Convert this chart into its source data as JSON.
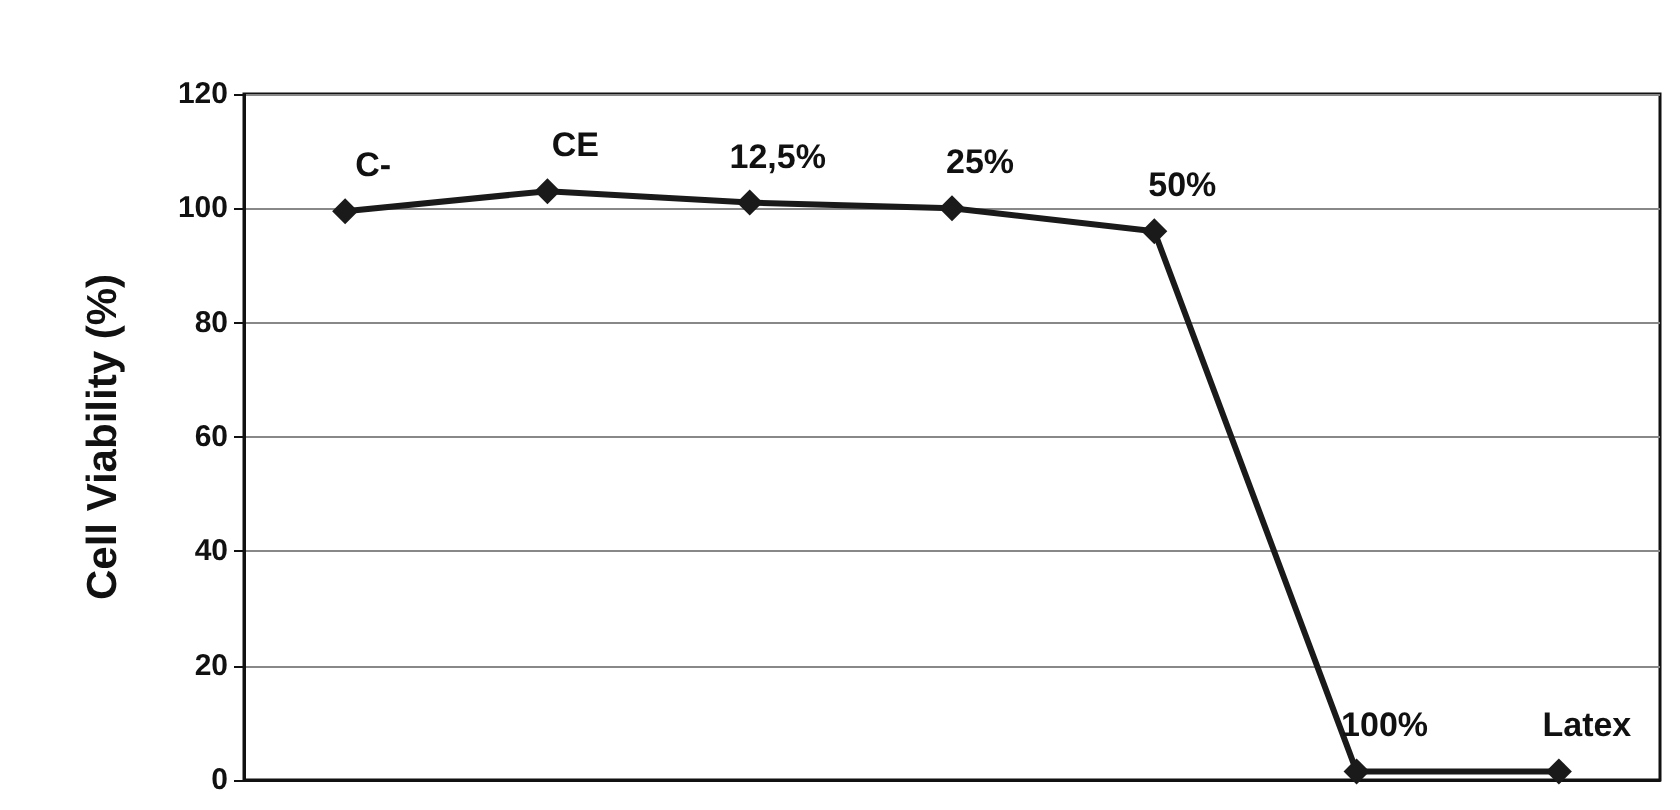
{
  "chart_data": {
    "type": "line",
    "ylabel": "Cell Viability (%)",
    "categories": [
      "C-",
      "CE",
      "12,5%",
      "25%",
      "50%",
      "100%",
      "Latex"
    ],
    "series": [
      {
        "color": "#1a1a1a",
        "values": [
          99.5,
          103,
          101,
          100,
          96,
          1.5,
          1.5
        ]
      }
    ],
    "ylim": [
      0,
      120
    ],
    "yticks": [
      0,
      20,
      40,
      60,
      80,
      100,
      120
    ],
    "grid": "y",
    "marker": "diamond",
    "line_style": "solid"
  }
}
